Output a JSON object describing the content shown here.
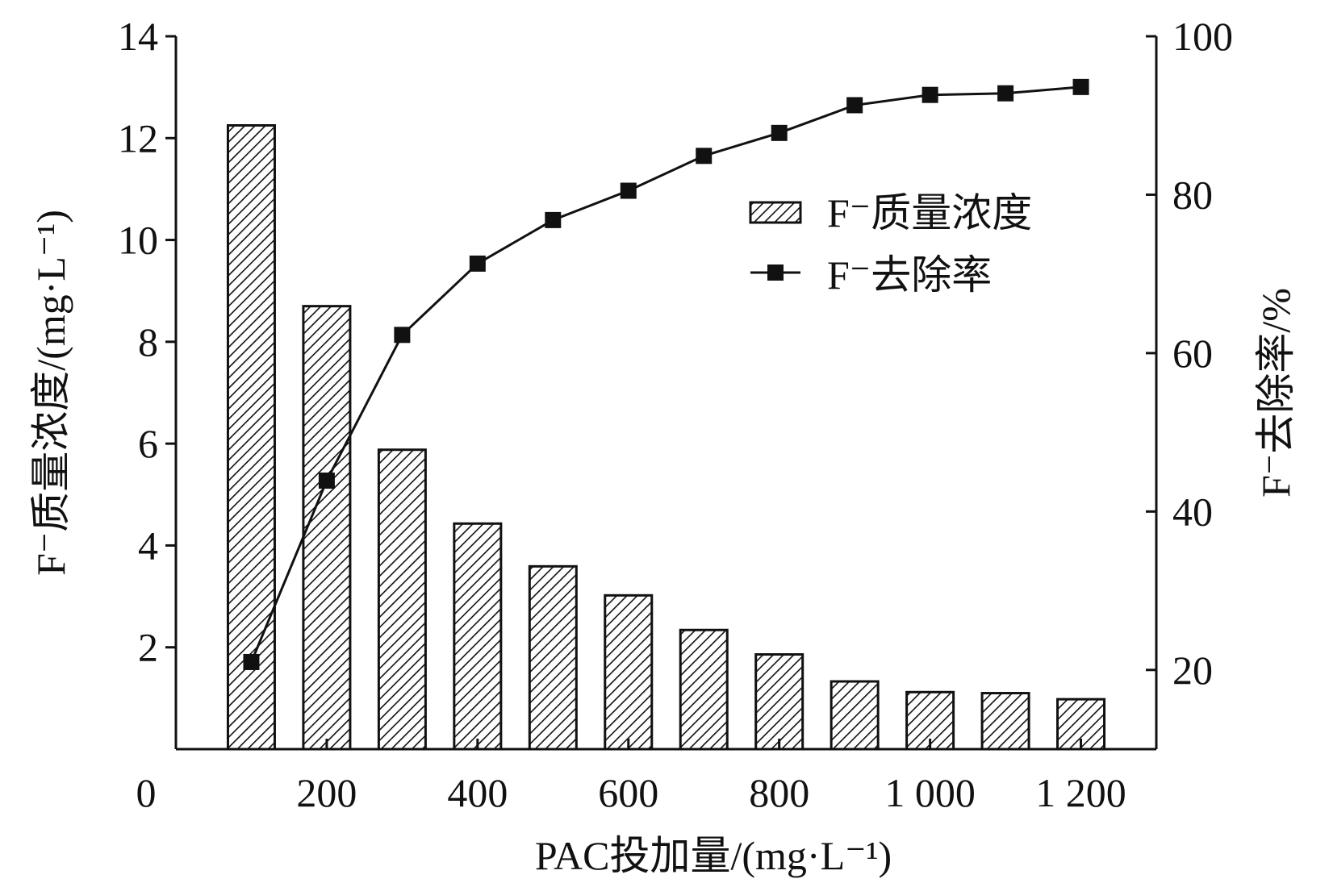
{
  "chart_data": {
    "type": "bar+line",
    "x_label": "PAC投加量/(mg·L⁻¹)",
    "y_left_label": "F⁻质量浓度/(mg·L⁻¹)",
    "y_right_label": "F⁻去除率/%",
    "x_range": [
      0,
      1300
    ],
    "x_ticks": [
      0,
      200,
      400,
      600,
      800,
      1000,
      1200
    ],
    "x_tick_labels": [
      "0",
      "200",
      "400",
      "600",
      "800",
      "1 000",
      "1 200"
    ],
    "y_left_range": [
      0,
      14
    ],
    "y_left_ticks": [
      2,
      4,
      6,
      8,
      10,
      12,
      14
    ],
    "y_left_tick_labels": [
      "2",
      "4",
      "6",
      "8",
      "10",
      "12",
      "14"
    ],
    "y_right_range": [
      10,
      100
    ],
    "y_right_ticks": [
      20,
      40,
      60,
      80,
      100
    ],
    "y_right_tick_labels": [
      "20",
      "40",
      "60",
      "80",
      "100"
    ],
    "x": [
      100,
      200,
      300,
      400,
      500,
      600,
      700,
      800,
      900,
      1000,
      1100,
      1200
    ],
    "series": [
      {
        "name": "F⁻质量浓度",
        "kind": "bar",
        "axis": "left",
        "values": [
          12.25,
          8.7,
          5.88,
          4.43,
          3.59,
          3.02,
          2.34,
          1.86,
          1.33,
          1.12,
          1.1,
          0.98
        ]
      },
      {
        "name": "F⁻去除率",
        "kind": "line-marker",
        "axis": "right",
        "values": [
          21,
          43.9,
          62.3,
          71.3,
          76.8,
          80.5,
          84.9,
          87.8,
          91.3,
          92.6,
          92.8,
          93.6
        ]
      }
    ],
    "legend_position": "top-right",
    "grid": false
  }
}
